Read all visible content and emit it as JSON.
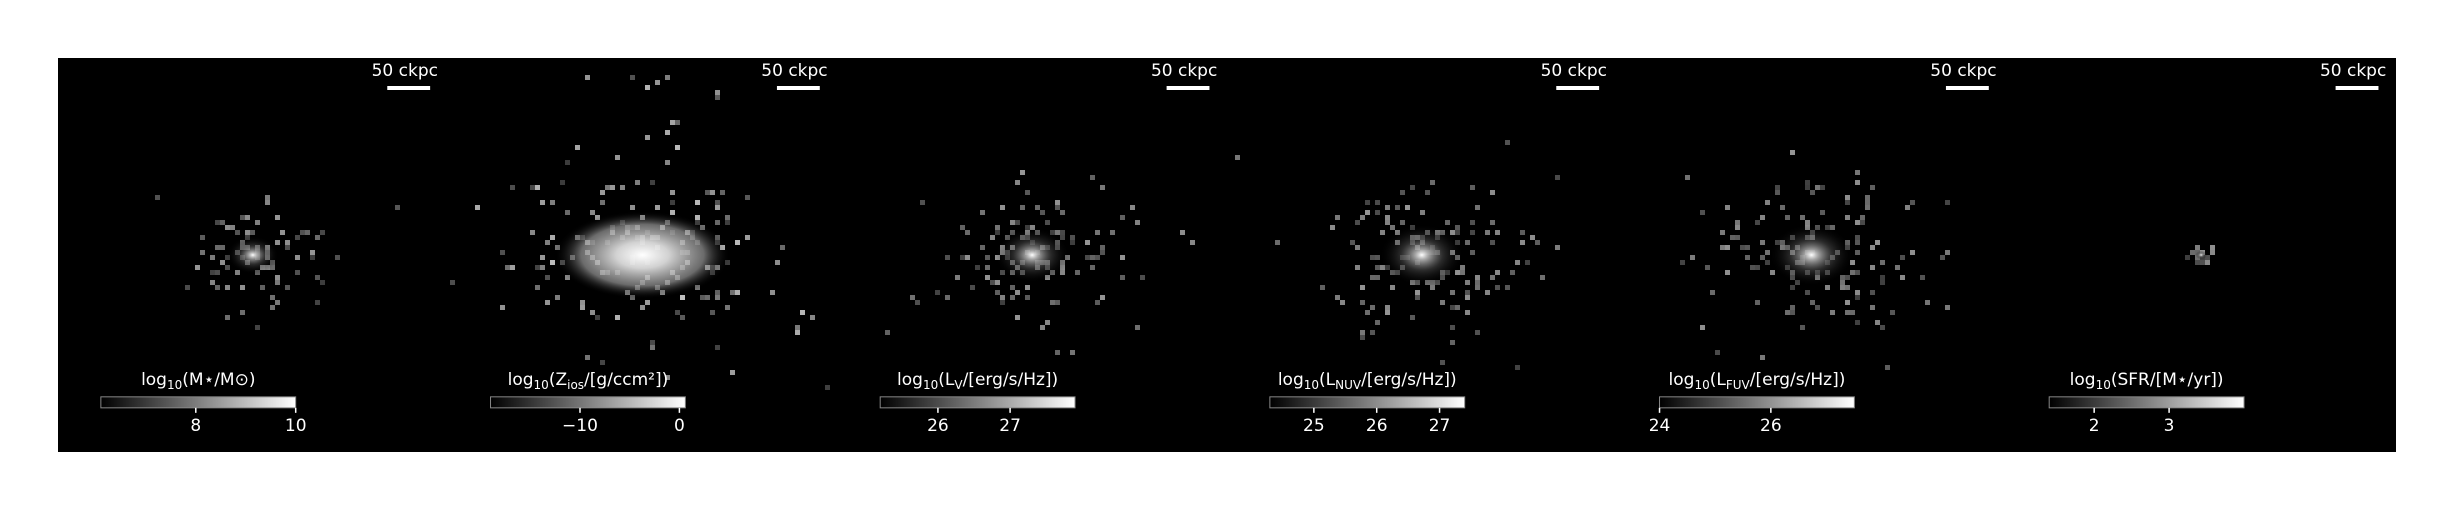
{
  "panels": [
    {
      "scale_bar": "50 ckpc",
      "colorbar_label": [
        "log",
        "10",
        "(M⋆/M⊙)"
      ],
      "clim": [
        6.1,
        10
      ],
      "colorbar_ticks": [
        8,
        10
      ]
    },
    {
      "scale_bar": "50 ckpc",
      "colorbar_label": [
        "log",
        "10",
        "(Z",
        "ios",
        "/[g/ccm²])"
      ],
      "clim": [
        -19,
        0.6
      ],
      "colorbar_ticks": [
        {
          "value": -10,
          "label": "−10"
        },
        0
      ]
    },
    {
      "scale_bar": "50 ckpc",
      "colorbar_label": [
        "log",
        "10",
        "(L",
        "V",
        "/[erg/s/Hz])"
      ],
      "clim": [
        25.2,
        27.9
      ],
      "colorbar_ticks": [
        26,
        27
      ]
    },
    {
      "scale_bar": "50 ckpc",
      "colorbar_label": [
        "log",
        "10",
        "(L",
        "NUV",
        "/[erg/s/Hz])"
      ],
      "clim": [
        24.3,
        27.4
      ],
      "colorbar_ticks": [
        25,
        26,
        27
      ]
    },
    {
      "scale_bar": "50 ckpc",
      "colorbar_label": [
        "log",
        "10",
        "(L",
        "FUV",
        "/[erg/s/Hz])"
      ],
      "clim": [
        24,
        27.5
      ],
      "colorbar_ticks": [
        24,
        26
      ]
    },
    {
      "scale_bar": "50 ckpc",
      "colorbar_label": [
        "log",
        "10",
        "(SFR/[M⋆/yr])"
      ],
      "clim": [
        1.4,
        4.0
      ],
      "colorbar_ticks": [
        2,
        3
      ]
    }
  ]
}
